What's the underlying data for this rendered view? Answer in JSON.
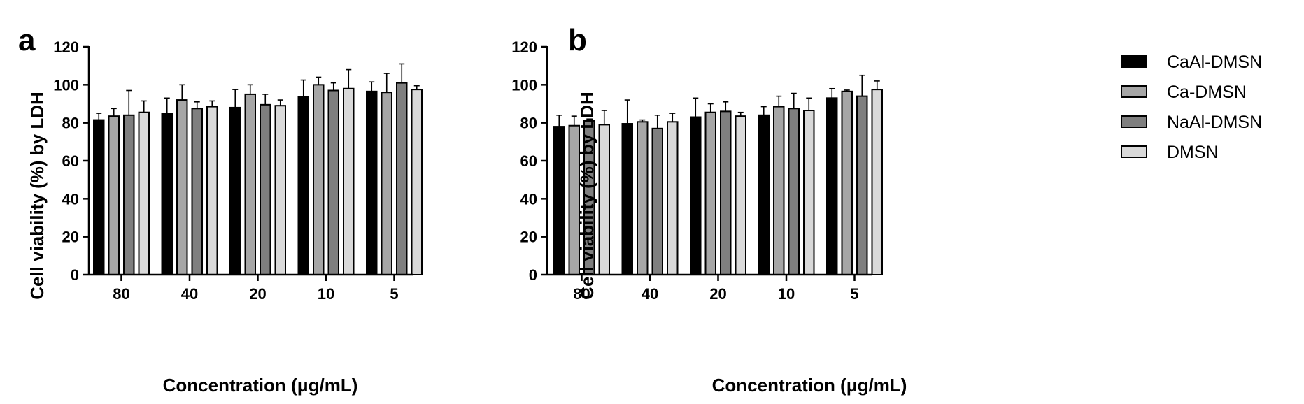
{
  "legend": {
    "position": "right",
    "items": [
      {
        "label": "CaAl-DMSN",
        "color": "#000000"
      },
      {
        "label": "Ca-DMSN",
        "color": "#a6a6a6"
      },
      {
        "label": "NaAl-DMSN",
        "color": "#7f7f7f"
      },
      {
        "label": "DMSN",
        "color": "#d9d9d9"
      }
    ]
  },
  "chart_data": [
    {
      "type": "bar",
      "panel": "a",
      "xlabel": "Concentration (μg/mL)",
      "ylabel": "Cell viability (%) by LDH",
      "ylim": [
        0,
        120
      ],
      "yticks": [
        0,
        20,
        40,
        60,
        80,
        100,
        120
      ],
      "categories": [
        "80",
        "40",
        "20",
        "10",
        "5"
      ],
      "grid": false,
      "series": [
        {
          "name": "CaAl-DMSN",
          "values": [
            81.5,
            85,
            88,
            93.5,
            96.5
          ],
          "errors": [
            3.5,
            8,
            9.5,
            9,
            5
          ]
        },
        {
          "name": "Ca-DMSN",
          "values": [
            83.5,
            92,
            95,
            100,
            96
          ],
          "errors": [
            4,
            8,
            5,
            4,
            10
          ]
        },
        {
          "name": "NaAl-DMSN",
          "values": [
            84,
            87.5,
            89.5,
            97,
            101
          ],
          "errors": [
            13,
            3.5,
            5.5,
            4,
            10
          ]
        },
        {
          "name": "DMSN",
          "values": [
            85.5,
            88.5,
            89,
            98,
            97.5
          ],
          "errors": [
            6,
            3,
            3,
            10,
            2
          ]
        }
      ]
    },
    {
      "type": "bar",
      "panel": "b",
      "xlabel": "Concentration (μg/mL)",
      "ylabel": "Cell viability (%) by LDH",
      "ylim": [
        0,
        120
      ],
      "yticks": [
        0,
        20,
        40,
        60,
        80,
        100,
        120
      ],
      "categories": [
        "80",
        "40",
        "20",
        "10",
        "5"
      ],
      "grid": false,
      "series": [
        {
          "name": "CaAl-DMSN",
          "values": [
            78,
            79.5,
            83,
            84,
            93
          ],
          "errors": [
            6,
            12.5,
            10,
            4.5,
            5
          ]
        },
        {
          "name": "Ca-DMSN",
          "values": [
            78.5,
            80.5,
            85.5,
            88.5,
            96.5
          ],
          "errors": [
            5,
            1,
            4.5,
            5.5,
            0.7
          ]
        },
        {
          "name": "NaAl-DMSN",
          "values": [
            81,
            77,
            86,
            87.5,
            94
          ],
          "errors": [
            1,
            7,
            5,
            8,
            11
          ]
        },
        {
          "name": "DMSN",
          "values": [
            79,
            80.5,
            83.5,
            86.5,
            97.5
          ],
          "errors": [
            7.5,
            4.5,
            2,
            6.5,
            4.5
          ]
        }
      ]
    }
  ]
}
